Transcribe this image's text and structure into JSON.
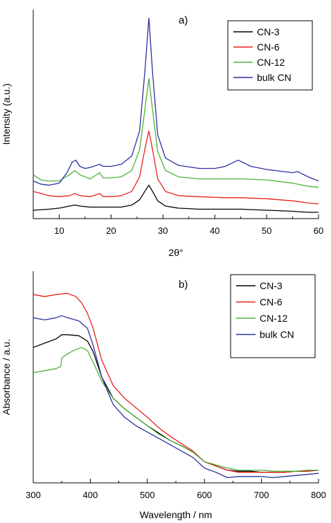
{
  "chart_data": [
    {
      "panel": "a)",
      "type": "line",
      "xlabel": "2θ°",
      "ylabel": "Intensity (a.u.)",
      "xlim": [
        5,
        60
      ],
      "xticks": [
        10,
        20,
        30,
        40,
        50,
        60
      ],
      "y_ticks_shown": false,
      "ylim": [
        0,
        100
      ],
      "legend": "top-right",
      "series": [
        {
          "name": "CN-3",
          "color": "#000000",
          "x": [
            5,
            8,
            10,
            12,
            13,
            14,
            16,
            18,
            20,
            22,
            24,
            25.5,
            26.5,
            27.3,
            28,
            29,
            30.5,
            33,
            37,
            42,
            45,
            50,
            55,
            58,
            60
          ],
          "y": [
            4,
            4.5,
            5,
            6,
            6.5,
            6,
            5.5,
            5.5,
            5.5,
            5.5,
            6.5,
            9,
            13,
            16,
            13,
            8.5,
            6,
            5,
            4.5,
            4.5,
            4.5,
            4,
            3.5,
            3,
            3
          ]
        },
        {
          "name": "CN-6",
          "color": "#e8201a",
          "x": [
            5,
            8,
            10,
            12,
            13,
            14,
            16,
            17.8,
            18.5,
            20,
            22,
            24,
            25.5,
            26.5,
            27.3,
            28,
            29,
            30.5,
            33,
            37,
            42,
            45,
            50,
            55,
            58,
            60
          ],
          "y": [
            13,
            11,
            10.5,
            11,
            12,
            11,
            10.5,
            12,
            10.5,
            10.5,
            11,
            13,
            20,
            33,
            42,
            33,
            19,
            13,
            11,
            10.5,
            10,
            10,
            9.5,
            8.5,
            7.5,
            7
          ]
        },
        {
          "name": "CN-12",
          "color": "#4cb038",
          "x": [
            5,
            6.5,
            8,
            10,
            12,
            13,
            14,
            16,
            17.8,
            18.5,
            20,
            22,
            24,
            25.5,
            26.5,
            27.3,
            28,
            29,
            30.5,
            33,
            37,
            42,
            45,
            50,
            55,
            58,
            60
          ],
          "y": [
            21,
            18.5,
            18,
            18,
            21,
            23,
            21,
            19,
            22,
            19.5,
            19.5,
            20,
            23,
            33,
            52,
            67,
            52,
            32,
            23,
            20,
            19,
            19,
            19,
            18.5,
            17,
            15.5,
            15
          ]
        },
        {
          "name": "bulk CN",
          "color": "#2b2f9e",
          "x": [
            5,
            6.5,
            8,
            10,
            11.5,
            12.5,
            13.2,
            14,
            15,
            16,
            17.8,
            18.5,
            20,
            22,
            24,
            25.5,
            26.5,
            27.3,
            28,
            29,
            30.5,
            33,
            37,
            40,
            42,
            44.5,
            47,
            50,
            55,
            56,
            58,
            60
          ],
          "y": [
            18,
            16.5,
            16,
            17,
            22,
            27,
            28,
            25,
            24,
            24.5,
            26,
            25,
            25,
            26,
            30,
            42,
            70,
            96,
            70,
            40,
            29,
            25.5,
            24,
            24,
            25,
            28,
            25,
            23.5,
            22,
            22.5,
            20,
            18
          ]
        }
      ]
    },
    {
      "panel": "b)",
      "type": "line",
      "xlabel": "Wavelength / nm",
      "ylabel": "Absorbance / a.u.",
      "xlim": [
        300,
        800
      ],
      "xticks": [
        300,
        400,
        500,
        600,
        700,
        800
      ],
      "y_ticks_shown": false,
      "ylim": [
        0,
        100
      ],
      "legend": "top-right",
      "series": [
        {
          "name": "CN-3",
          "color": "#000000",
          "x": [
            300,
            320,
            340,
            350,
            360,
            380,
            395,
            405,
            420,
            440,
            460,
            480,
            500,
            520,
            540,
            560,
            580,
            600,
            620,
            640,
            660,
            680,
            700,
            720,
            740,
            760,
            780,
            800
          ],
          "y": [
            64,
            66,
            68,
            70,
            70,
            69.5,
            67,
            62,
            50,
            40,
            35,
            31,
            27,
            23.5,
            20,
            17.5,
            14.5,
            10,
            8,
            6,
            5.5,
            5.5,
            5,
            5,
            5,
            5.5,
            5.5,
            6
          ]
        },
        {
          "name": "CN-6",
          "color": "#e8201a",
          "x": [
            300,
            320,
            340,
            360,
            375,
            385,
            395,
            405,
            420,
            440,
            460,
            480,
            500,
            520,
            540,
            560,
            580,
            600,
            620,
            640,
            660,
            680,
            700,
            720,
            740,
            760,
            780,
            800
          ],
          "y": [
            89,
            88,
            89,
            89.5,
            88,
            85,
            80,
            73,
            58,
            46,
            40,
            35.5,
            31,
            26,
            22,
            18.5,
            15,
            10,
            8,
            6,
            5,
            5,
            5,
            5,
            5,
            5.5,
            5.5,
            6
          ]
        },
        {
          "name": "CN-12",
          "color": "#4cb038",
          "x": [
            300,
            320,
            340,
            348,
            350,
            355,
            370,
            385,
            395,
            405,
            420,
            440,
            460,
            480,
            500,
            520,
            540,
            560,
            580,
            600,
            620,
            640,
            660,
            680,
            700,
            720,
            740,
            760,
            780,
            800
          ],
          "y": [
            52,
            53,
            54,
            55,
            59,
            60,
            62.5,
            64,
            62.5,
            57,
            48,
            40,
            35,
            31,
            27,
            23,
            20,
            17.5,
            14.5,
            10,
            8.5,
            7,
            6,
            6,
            6,
            5.5,
            5.5,
            5.5,
            6,
            6
          ]
        },
        {
          "name": "bulk CN",
          "color": "#2b2f9e",
          "x": [
            300,
            320,
            340,
            350,
            360,
            380,
            395,
            405,
            420,
            440,
            460,
            480,
            500,
            520,
            540,
            560,
            580,
            600,
            620,
            640,
            660,
            680,
            700,
            720,
            740,
            760,
            780,
            800
          ],
          "y": [
            78,
            77,
            78,
            79,
            78,
            76.5,
            73,
            65,
            50,
            37,
            31,
            27,
            24,
            21,
            18,
            15,
            12,
            7,
            5,
            2.5,
            3,
            3,
            3,
            2.5,
            3,
            3.5,
            4,
            4.5
          ]
        }
      ]
    }
  ]
}
